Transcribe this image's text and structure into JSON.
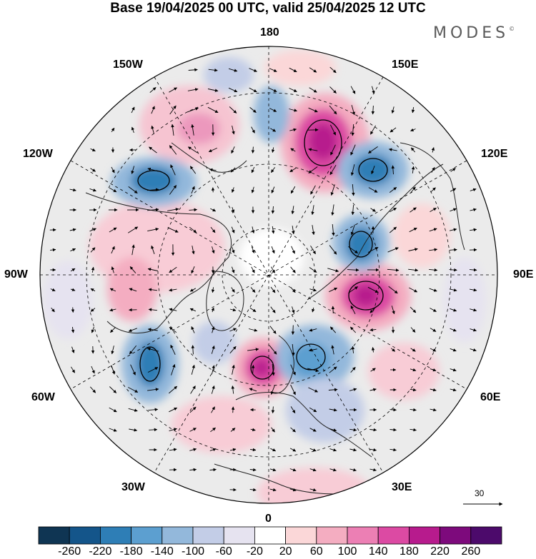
{
  "title": "Base 19/04/2025 00 UTC, valid 25/04/2025 12 UTC",
  "brand": "MODES",
  "brand_mark": "©",
  "longitude_labels": {
    "top": "180",
    "bottom": "0",
    "left": "90W",
    "right": "90E",
    "upper_left_1": "150W",
    "upper_left_2": "120W",
    "upper_right_1": "150E",
    "upper_right_2": "120E",
    "lower_left_1": "60W",
    "lower_left_2": "30W",
    "lower_right_1": "60E",
    "lower_right_2": "30E"
  },
  "reference_vector": "30",
  "colorbar": {
    "labels": [
      "-260",
      "-220",
      "-180",
      "-140",
      "-100",
      "-60",
      "-20",
      "20",
      "60",
      "100",
      "140",
      "180",
      "220",
      "260"
    ],
    "colors": [
      "#0f3553",
      "#14558a",
      "#2e7eb6",
      "#5c9fd0",
      "#93b8db",
      "#c3cde7",
      "#e6e3f0",
      "#ffffff",
      "#fbd7d8",
      "#f4adc1",
      "#ec7fb4",
      "#dc4aa3",
      "#b71b8d",
      "#7d0a7c",
      "#4c0a6b"
    ]
  },
  "map": {
    "projection": "north-polar-stereographic",
    "background_shading": "#ebebeb",
    "anomalies": [
      {
        "label": "positive anomaly over the Bering Sea",
        "value": 210
      },
      {
        "label": "positive anomaly over Siberia",
        "value": 230
      },
      {
        "label": "positive anomaly over Scandinavia",
        "value": 230
      },
      {
        "label": "negative anomaly over eastern Siberia",
        "value": -200
      },
      {
        "label": "negative anomaly near Taymyr",
        "value": -190
      },
      {
        "label": "negative anomaly over the Gulf of Alaska",
        "value": -200
      },
      {
        "label": "negative anomaly over the western Atlantic",
        "value": -230
      },
      {
        "label": "negative anomaly over western Russia",
        "value": -180
      }
    ]
  }
}
